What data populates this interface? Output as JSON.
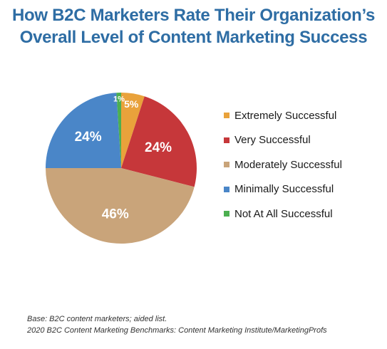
{
  "chart_data": {
    "type": "pie",
    "title": "How B2C Marketers Rate Their Organization’s Overall Level of Content Marketing Success",
    "title_lines": [
      "How B2C Marketers Rate Their Organization’s",
      "Overall Level of Content Marketing Success"
    ],
    "slices": [
      {
        "name": "Extremely Successful",
        "value": 5,
        "label": "5%",
        "color": "#e9a23b"
      },
      {
        "name": "Very Successful",
        "value": 24,
        "label": "24%",
        "color": "#c6373a"
      },
      {
        "name": "Moderately Successful",
        "value": 46,
        "label": "46%",
        "color": "#c9a47a"
      },
      {
        "name": "Minimally Successful",
        "value": 24,
        "label": "24%",
        "color": "#4a86c8"
      },
      {
        "name": "Not At All Successful",
        "value": 1,
        "label": "1%",
        "color": "#4caf50"
      }
    ],
    "legend_position": "right"
  },
  "footer": {
    "base": "Base: B2C content marketers; aided list.",
    "source": "2020 B2C Content Marketing Benchmarks: Content Marketing Institute/MarketingProfs"
  }
}
